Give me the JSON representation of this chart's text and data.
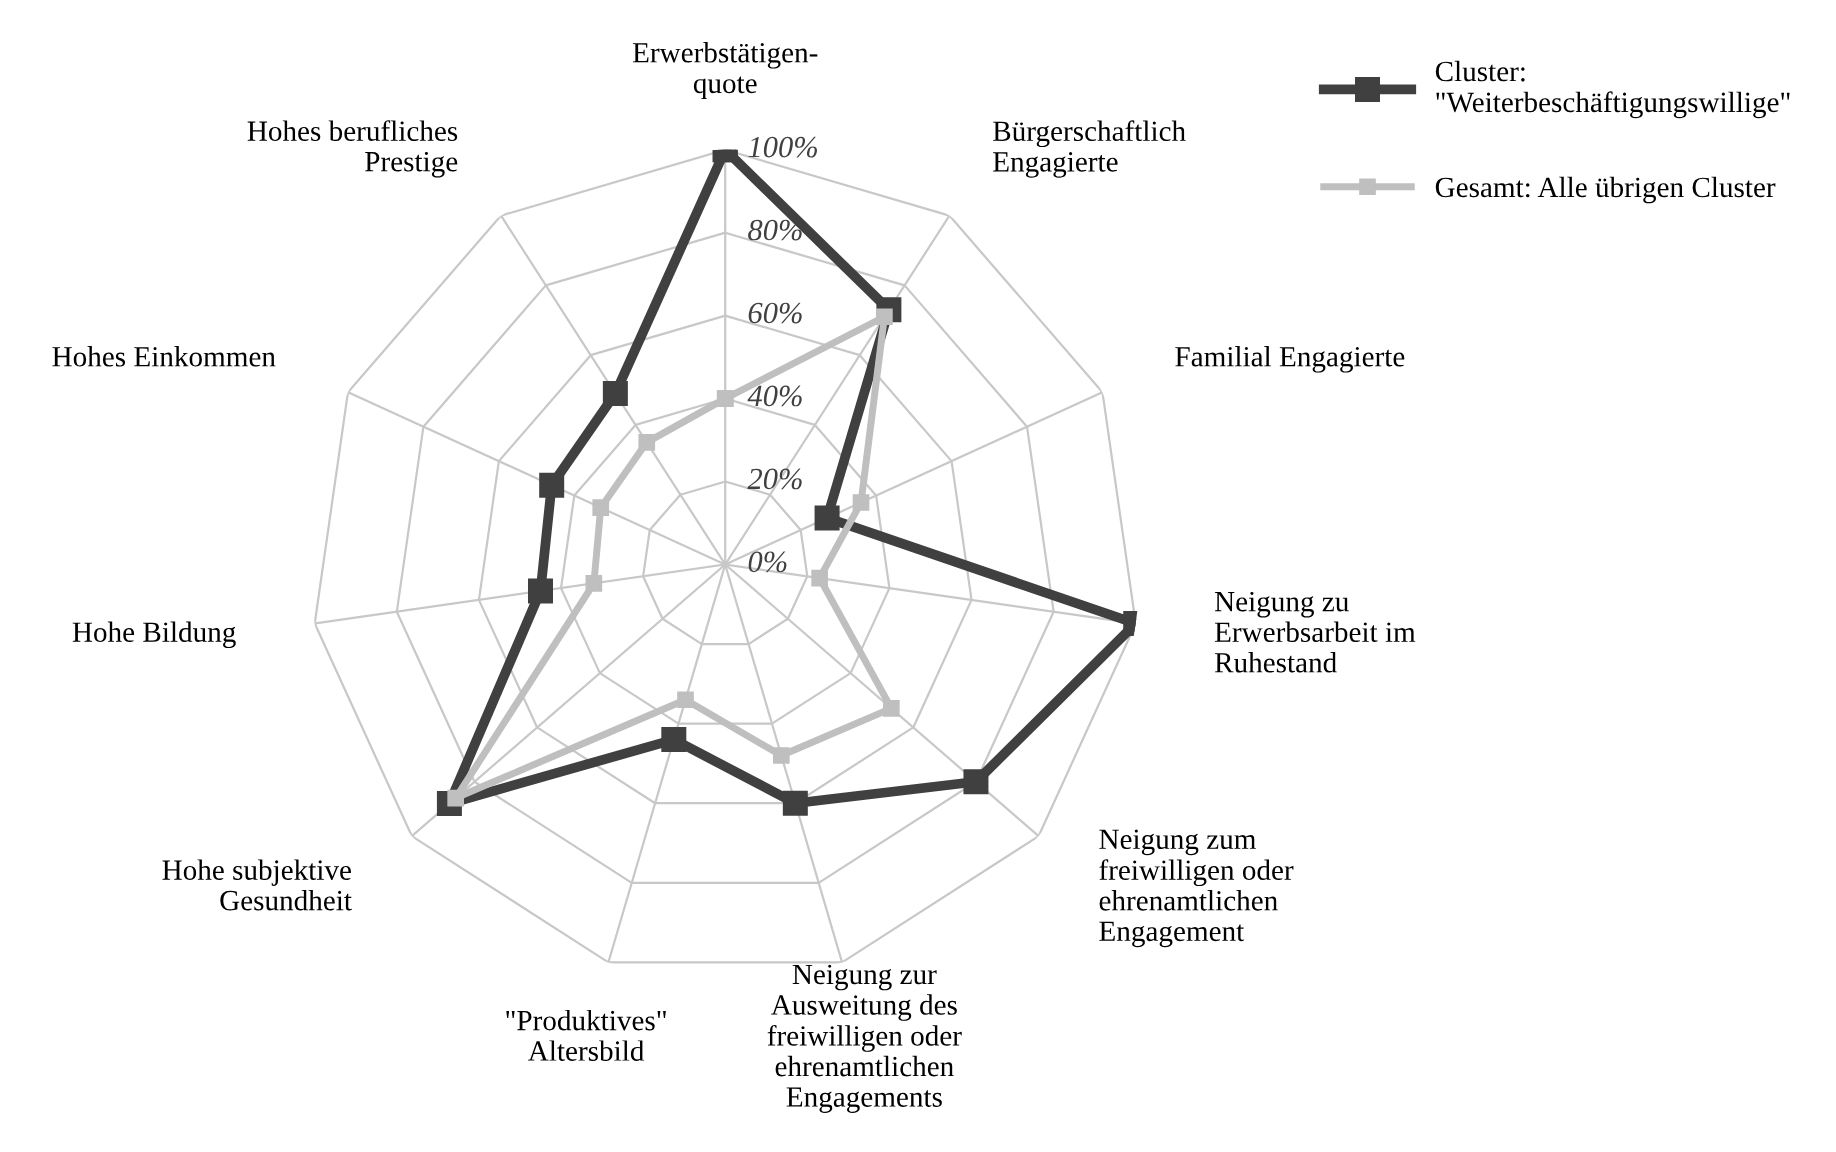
{
  "chart_data": {
    "type": "radar",
    "categories": [
      "Erwerbstätigen-\nquote",
      "Bürgerschaftlich\nEngagierte",
      "Familial Engagierte",
      "Neigung zu\nErwerbsarbeit im\nRuhestand",
      "Neigung zum\nfreiwilligen oder\nehrenamtlichen\nEngagement",
      "Neigung zur\nAusweitung des\nfreiwilligen oder\nehrenamtlichen\nEngagements",
      "\"Produktives\"\nAltersbild",
      "Hohe subjektive\nGesundheit",
      "Hohe Bildung",
      "Hohes Einkommen",
      "Hohes berufliches\nPrestige"
    ],
    "series": [
      {
        "name": "Cluster:\n\"Weiterbeschäftigungswillige\"",
        "color": "#404040",
        "values": [
          100,
          73,
          27,
          100,
          80,
          60,
          44,
          88,
          45,
          46,
          49
        ]
      },
      {
        "name": "Gesamt: Alle übrigen Cluster",
        "color": "#bfbfbf",
        "values": [
          40,
          71,
          36,
          23,
          53,
          48,
          34,
          86,
          32,
          33,
          35
        ]
      }
    ],
    "ylim": [
      0,
      100
    ],
    "yticks": [
      {
        "value": 0,
        "label": "0%"
      },
      {
        "value": 20,
        "label": "20%"
      },
      {
        "value": 40,
        "label": "40%"
      },
      {
        "value": 60,
        "label": "60%"
      },
      {
        "value": 80,
        "label": "80%"
      },
      {
        "value": 100,
        "label": "100%"
      }
    ],
    "grid": true,
    "legend": "top right",
    "marker": "square",
    "line_style": "solid"
  }
}
